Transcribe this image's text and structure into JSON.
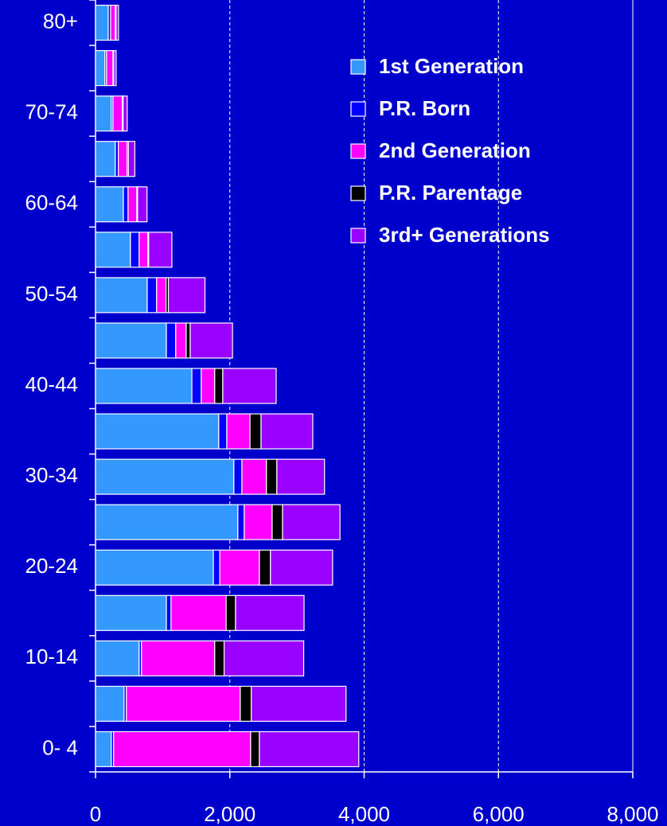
{
  "chart_data": {
    "type": "stacked_barh",
    "categories": [
      "80+",
      null,
      "70-74",
      null,
      "60-64",
      null,
      "50-54",
      null,
      "40-44",
      null,
      "30-34",
      null,
      "20-24",
      null,
      "10-14",
      null,
      "0- 4"
    ],
    "series": [
      {
        "name": "1st Generation",
        "color": "#3399ff",
        "values": [
          190,
          140,
          235,
          295,
          415,
          520,
          770,
          1055,
          1435,
          1835,
          2060,
          2120,
          1755,
          1055,
          650,
          425,
          235
        ]
      },
      {
        "name": "P.R. Born",
        "color": "#0000ff",
        "values": [
          35,
          25,
          25,
          45,
          70,
          130,
          140,
          140,
          140,
          120,
          120,
          95,
          95,
          70,
          35,
          35,
          35
        ]
      },
      {
        "name": "2nd Generation",
        "color": "#ff00ff",
        "values": [
          70,
          95,
          140,
          130,
          130,
          130,
          140,
          155,
          200,
          345,
          365,
          415,
          590,
          820,
          1090,
          1695,
          2040
        ]
      },
      {
        "name": "P.R. Parentage",
        "color": "#000000",
        "values": [
          12,
          12,
          12,
          20,
          12,
          12,
          35,
          60,
          120,
          165,
          155,
          155,
          165,
          140,
          140,
          165,
          130
        ]
      },
      {
        "name": "3rd+ Generations",
        "color": "#9900ff",
        "values": [
          35,
          35,
          60,
          95,
          140,
          345,
          545,
          630,
          795,
          770,
          710,
          855,
          925,
          1020,
          1185,
          1410,
          1480
        ]
      }
    ],
    "xlim": [
      0,
      8000
    ],
    "xticks": [
      0,
      {
        "value": 2000,
        "label": "2,000"
      },
      {
        "value": 4000,
        "label": "4,000"
      },
      {
        "value": 6000,
        "label": "6,000"
      },
      {
        "value": 8000,
        "label": "8,000"
      }
    ],
    "grid": true
  }
}
